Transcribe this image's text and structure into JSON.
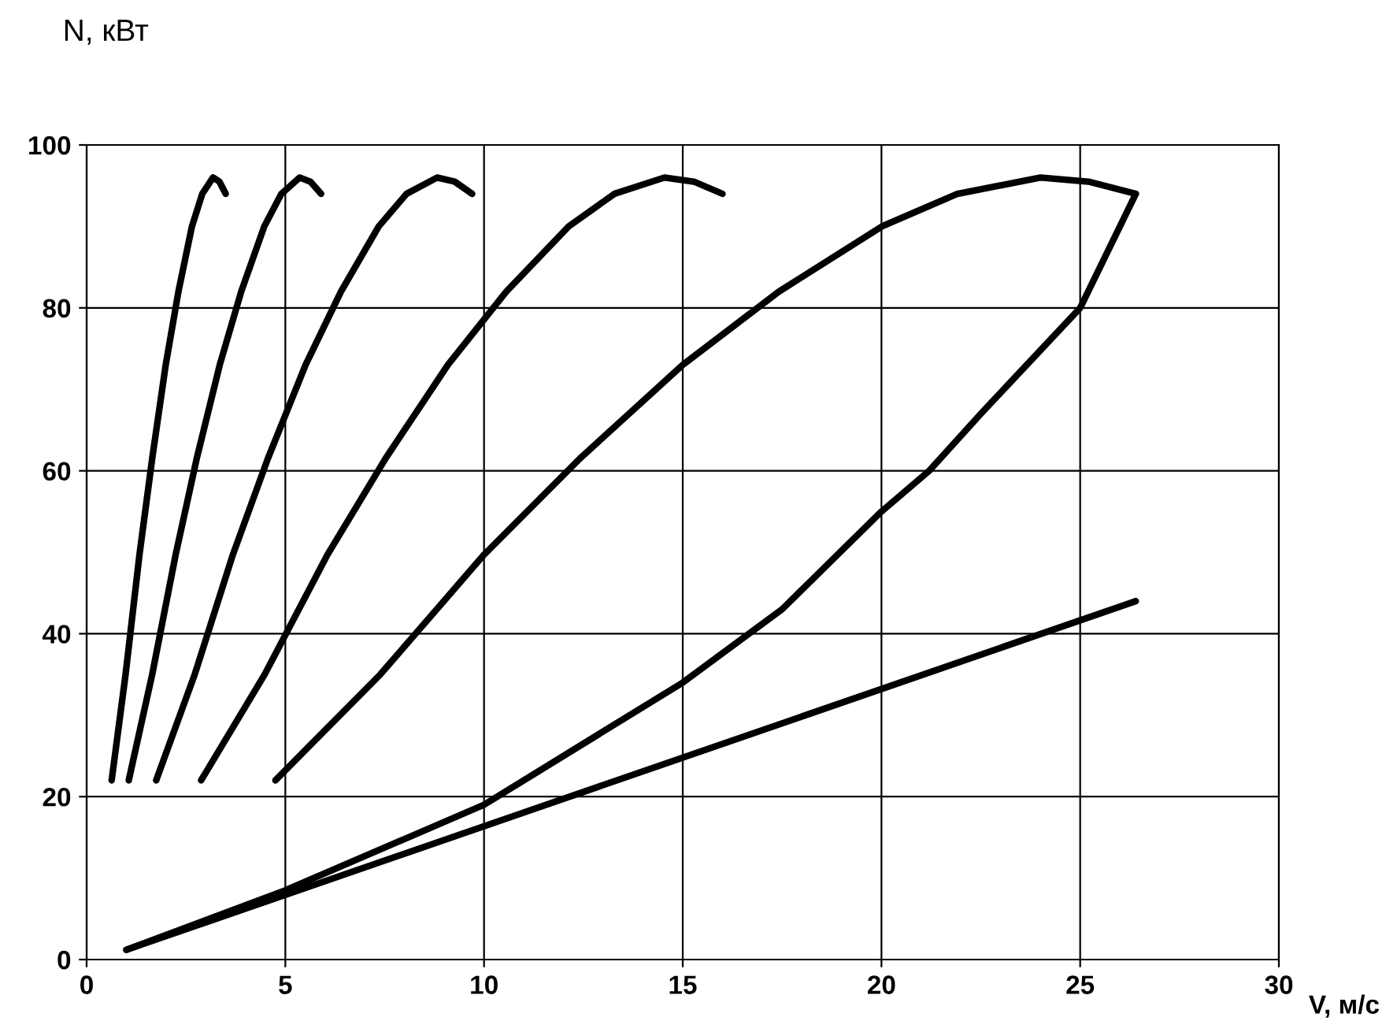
{
  "chart_data": {
    "type": "line",
    "xlabel": "V, м/с",
    "ylabel": "N, кВт",
    "xlim": [
      0,
      30
    ],
    "ylim": [
      0,
      100
    ],
    "xticks": [
      0,
      5,
      10,
      15,
      20,
      25,
      30
    ],
    "yticks": [
      0,
      20,
      40,
      60,
      80,
      100
    ],
    "grid": true,
    "legend": false,
    "marker": "none",
    "line_style": "solid",
    "series": [
      {
        "color": "#000000",
        "x": [
          0.63,
          0.98,
          1.33,
          1.65,
          1.99,
          2.31,
          2.65,
          2.91,
          3.18,
          3.34,
          3.5
        ],
        "values": [
          22,
          35,
          49.7,
          61.5,
          73,
          82,
          90,
          94,
          96,
          95.5,
          94
        ]
      },
      {
        "color": "#000000",
        "x": [
          1.06,
          1.65,
          2.24,
          2.77,
          3.35,
          3.89,
          4.47,
          4.9,
          5.36,
          5.63,
          5.9
        ],
        "values": [
          22,
          35,
          49.7,
          61.5,
          73,
          82,
          90,
          94,
          96,
          95.5,
          94
        ]
      },
      {
        "color": "#000000",
        "x": [
          1.75,
          2.72,
          3.68,
          4.56,
          5.51,
          6.4,
          7.35,
          8.05,
          8.82,
          9.26,
          9.7
        ],
        "values": [
          22,
          35,
          49.7,
          61.5,
          73,
          82,
          90,
          94,
          96,
          95.5,
          94
        ]
      },
      {
        "color": "#000000",
        "x": [
          2.88,
          4.48,
          6.06,
          7.52,
          9.09,
          10.56,
          12.13,
          13.28,
          14.54,
          15.28,
          16.0
        ],
        "values": [
          22,
          35,
          49.7,
          61.5,
          73,
          82,
          90,
          94,
          96,
          95.5,
          94
        ]
      },
      {
        "color": "#000000",
        "x": [
          4.75,
          7.39,
          10.0,
          12.41,
          15.0,
          17.42,
          20.01,
          21.91,
          24.0,
          25.21,
          26.4
        ],
        "values": [
          22,
          35,
          49.7,
          61.5,
          73,
          82,
          90,
          94,
          96,
          95.5,
          94
        ]
      },
      {
        "color": "#000000",
        "x": [
          1,
          5,
          10,
          15,
          17.5,
          20,
          21.2,
          22.5,
          25,
          26.4
        ],
        "values": [
          1.2,
          8.5,
          19,
          34,
          43,
          55,
          60,
          67,
          80,
          94
        ]
      },
      {
        "color": "#000000",
        "x": [
          1,
          26.4
        ],
        "values": [
          1.2,
          44
        ]
      }
    ]
  }
}
